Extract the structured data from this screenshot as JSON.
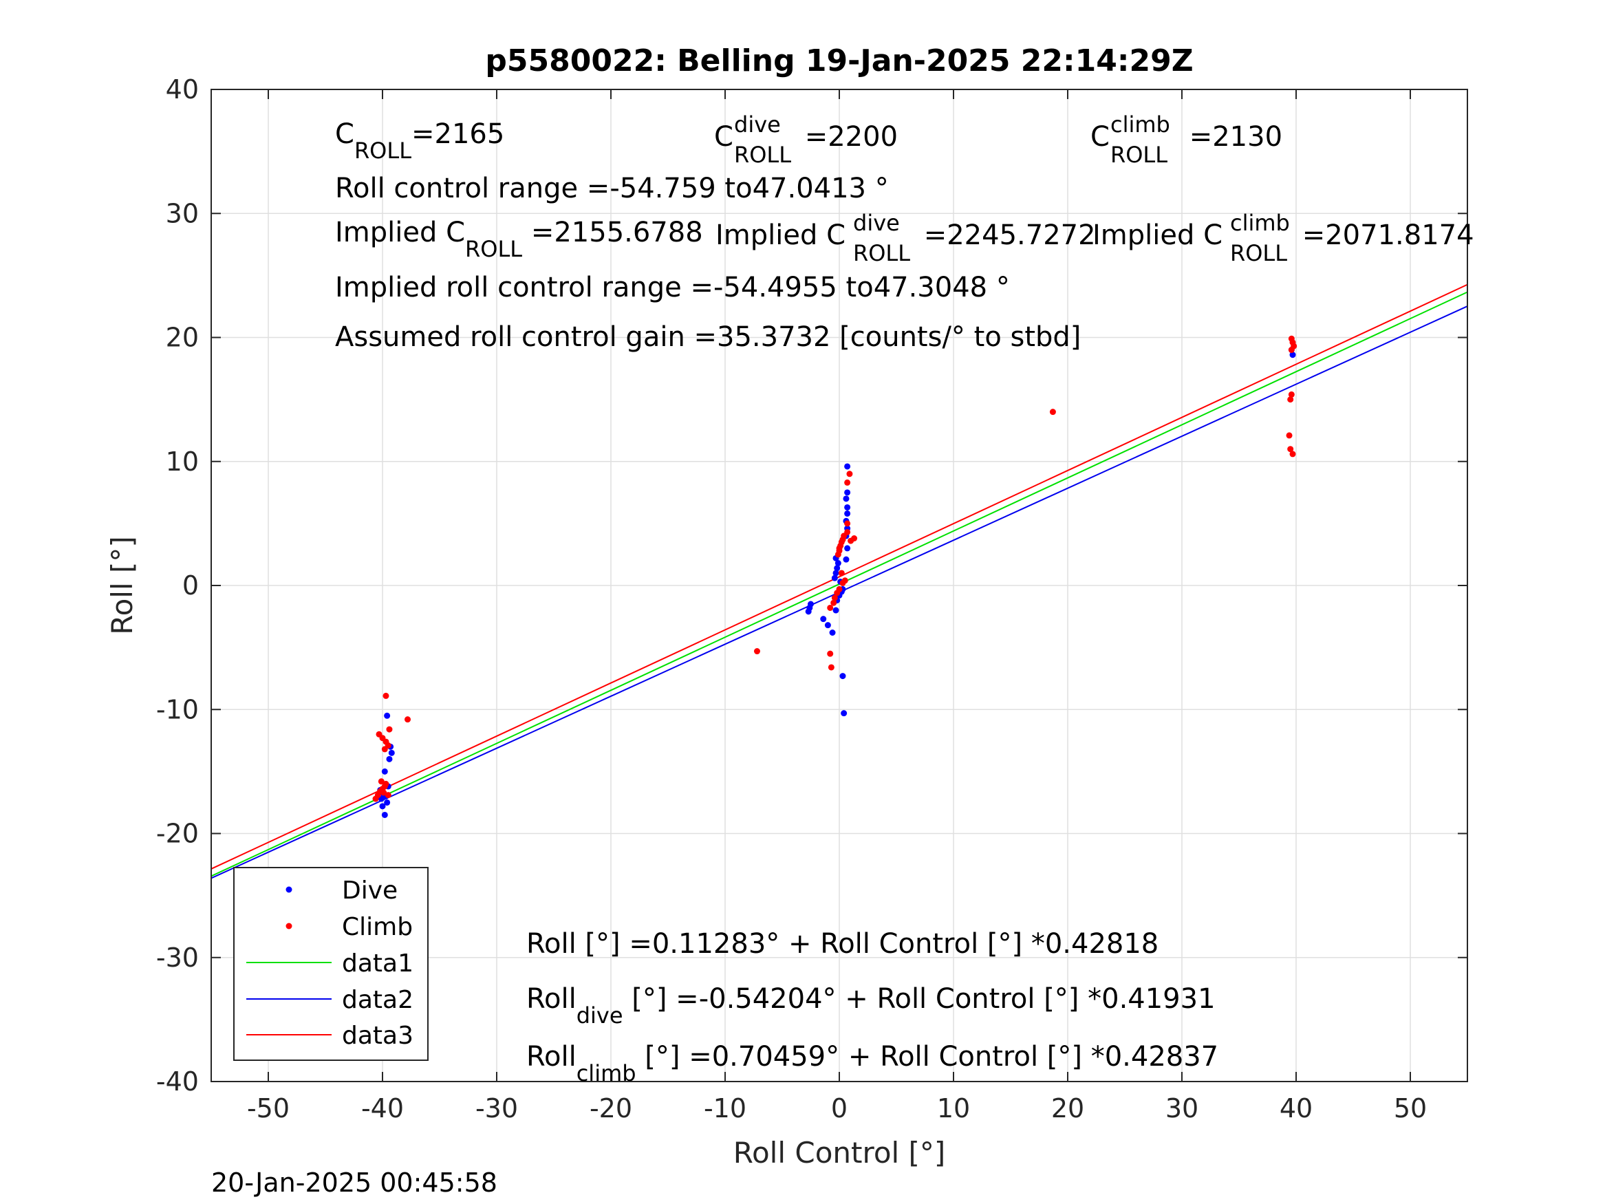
{
  "chart_data": {
    "type": "scatter",
    "title": "p5580022: Belling 19-Jan-2025 22:14:29Z",
    "xlabel": "Roll Control [°]",
    "ylabel": "Roll [°]",
    "xlim": [
      -55,
      55
    ],
    "ylim": [
      -40,
      40
    ],
    "xticks": [
      -50,
      -40,
      -30,
      -20,
      -10,
      0,
      10,
      20,
      30,
      40,
      50
    ],
    "yticks": [
      -40,
      -30,
      -20,
      -10,
      0,
      10,
      20,
      30,
      40
    ],
    "grid": true,
    "legend_position": "bottom-left",
    "series": [
      {
        "name": "Dive",
        "kind": "points",
        "color": "#0000ff",
        "points": [
          [
            -39.8,
            -18.5
          ],
          [
            -40.0,
            -17.8
          ],
          [
            -39.6,
            -17.5
          ],
          [
            -40.1,
            -17.2
          ],
          [
            -39.7,
            -17.0
          ],
          [
            -39.9,
            -16.8
          ],
          [
            -40.2,
            -16.5
          ],
          [
            -39.5,
            -16.2
          ],
          [
            -39.8,
            -15.0
          ],
          [
            -39.4,
            -14.0
          ],
          [
            -39.2,
            -13.5
          ],
          [
            -39.3,
            -13.0
          ],
          [
            -39.6,
            -10.5
          ],
          [
            -2.7,
            -2.1
          ],
          [
            -2.6,
            -1.8
          ],
          [
            -2.5,
            -1.5
          ],
          [
            -1.4,
            -2.7
          ],
          [
            -1.0,
            -3.2
          ],
          [
            -0.6,
            -3.8
          ],
          [
            -0.3,
            -2.0
          ],
          [
            -0.2,
            -1.2
          ],
          [
            0.0,
            -0.8
          ],
          [
            0.2,
            -0.5
          ],
          [
            0.1,
            0.3
          ],
          [
            0.3,
            -0.3
          ],
          [
            -0.4,
            0.6
          ],
          [
            -0.3,
            1.0
          ],
          [
            -0.2,
            1.4
          ],
          [
            -0.1,
            1.8
          ],
          [
            -0.3,
            2.2
          ],
          [
            0.6,
            2.1
          ],
          [
            0.7,
            3.0
          ],
          [
            0.6,
            4.0
          ],
          [
            0.7,
            4.6
          ],
          [
            0.6,
            5.2
          ],
          [
            0.7,
            5.8
          ],
          [
            0.7,
            6.3
          ],
          [
            0.6,
            7.0
          ],
          [
            0.7,
            7.5
          ],
          [
            0.7,
            9.6
          ],
          [
            0.3,
            -7.3
          ],
          [
            0.4,
            -10.3
          ],
          [
            39.7,
            18.6
          ],
          [
            39.6,
            19.0
          ]
        ]
      },
      {
        "name": "Climb",
        "kind": "points",
        "color": "#ff0000",
        "points": [
          [
            -40.6,
            -17.2
          ],
          [
            -40.4,
            -16.9
          ],
          [
            -40.2,
            -16.6
          ],
          [
            -40.0,
            -16.4
          ],
          [
            -39.8,
            -16.2
          ],
          [
            -39.7,
            -16.0
          ],
          [
            -40.1,
            -15.8
          ],
          [
            -39.9,
            -16.7
          ],
          [
            -39.5,
            -16.9
          ],
          [
            -40.3,
            -12.0
          ],
          [
            -40.0,
            -12.3
          ],
          [
            -39.7,
            -12.6
          ],
          [
            -39.5,
            -12.9
          ],
          [
            -39.8,
            -13.2
          ],
          [
            -39.4,
            -11.6
          ],
          [
            -39.7,
            -8.9
          ],
          [
            -37.8,
            -10.8
          ],
          [
            -7.2,
            -5.3
          ],
          [
            -0.8,
            -5.5
          ],
          [
            -0.7,
            -6.6
          ],
          [
            -0.8,
            -1.8
          ],
          [
            -0.5,
            -1.4
          ],
          [
            -0.4,
            -1.0
          ],
          [
            -0.2,
            -0.6
          ],
          [
            0.0,
            -0.3
          ],
          [
            0.3,
            0.2
          ],
          [
            0.5,
            0.4
          ],
          [
            0.2,
            1.0
          ],
          [
            -0.1,
            2.5
          ],
          [
            0.0,
            3.0
          ],
          [
            0.1,
            3.2
          ],
          [
            0.2,
            3.5
          ],
          [
            0.3,
            3.7
          ],
          [
            0.4,
            4.0
          ],
          [
            0.0,
            2.8
          ],
          [
            1.0,
            3.6
          ],
          [
            1.3,
            3.8
          ],
          [
            0.7,
            4.3
          ],
          [
            0.7,
            5.0
          ],
          [
            0.7,
            8.3
          ],
          [
            0.9,
            9.0
          ],
          [
            18.7,
            14.0
          ],
          [
            39.6,
            19.9
          ],
          [
            39.7,
            19.6
          ],
          [
            39.8,
            19.3
          ],
          [
            39.6,
            19.0
          ],
          [
            39.5,
            15.0
          ],
          [
            39.6,
            15.4
          ],
          [
            39.4,
            12.1
          ],
          [
            39.5,
            11.0
          ],
          [
            39.7,
            10.6
          ]
        ]
      },
      {
        "name": "data1",
        "kind": "line",
        "color": "#00e000",
        "x": [
          -55,
          55
        ],
        "y": [
          -23.437,
          23.663
        ]
      },
      {
        "name": "data2",
        "kind": "line",
        "color": "#0000ee",
        "x": [
          -55,
          55
        ],
        "y": [
          -23.604,
          22.52
        ]
      },
      {
        "name": "data3",
        "kind": "line",
        "color": "#ff0000",
        "x": [
          -55,
          55
        ],
        "y": [
          -22.855,
          24.265
        ]
      }
    ],
    "annotations": {
      "c_roll": {
        "base": "C",
        "sub": "ROLL",
        "value": "=2165"
      },
      "c_roll_dive": {
        "base": "C",
        "sup": "dive",
        "sub": "ROLL",
        "value": " =2200"
      },
      "c_roll_climb": {
        "base": "C",
        "sup": "climb",
        "sub": "ROLL",
        "value": " =2130"
      },
      "roll_control_range": "Roll control range =-54.759 to47.0413 °",
      "implied_c_roll": {
        "base": "Implied C",
        "sub": "ROLL",
        "value": " =2155.6788"
      },
      "implied_c_roll_dive": {
        "base": "Implied C",
        "sup": "dive",
        "sub": "ROLL",
        "value": " =2245.7272"
      },
      "implied_c_roll_climb": {
        "base": "Implied C",
        "sup": "climb",
        "sub": "ROLL",
        "value": " =2071.8174"
      },
      "implied_range": "Implied roll control range =-54.4955 to47.3048 °",
      "assumed_gain": "Assumed roll control gain =35.3732 [counts/° to stbd]",
      "fit_all": "Roll [°] =0.11283° + Roll Control [°] *0.42818",
      "fit_dive": {
        "base": "Roll",
        "sub": "dive",
        "rest": " [°] =-0.54204° + Roll Control [°] *0.41931"
      },
      "fit_climb": {
        "base": "Roll",
        "sub": "climb",
        "rest": " [°] =0.70459° + Roll Control [°] *0.42837"
      }
    }
  },
  "timestamp": "20-Jan-2025 00:45:58"
}
